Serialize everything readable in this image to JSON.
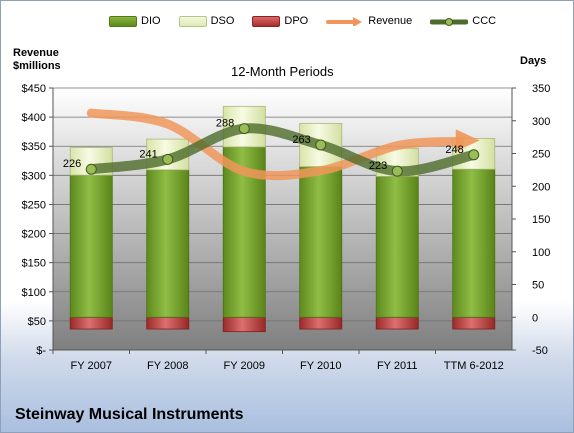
{
  "chart_data": {
    "type": "bar",
    "title": "12-Month Periods",
    "company": "Steinway Musical Instruments",
    "left_axis_title": [
      "Revenue",
      "$millions"
    ],
    "right_axis_title": "Days",
    "categories": [
      "FY 2007",
      "FY 2008",
      "FY 2009",
      "FY 2010",
      "FY 2011",
      "TTM 6-2012"
    ],
    "left_ticks": [
      "$-",
      "$50",
      "$100",
      "$150",
      "$200",
      "$250",
      "$300",
      "$350",
      "$400",
      "$450"
    ],
    "right_ticks": [
      "-50",
      "0",
      "50",
      "100",
      "150",
      "200",
      "250",
      "300",
      "350"
    ],
    "left_ylim": [
      0,
      450
    ],
    "right_ylim": [
      -50,
      350
    ],
    "grid": true,
    "legend_position": "top",
    "series": [
      {
        "name": "DIO",
        "axis": "right",
        "kind": "stacked-bar",
        "values": [
          217,
          225,
          260,
          230,
          215,
          226
        ],
        "color": "#6e9b2a"
      },
      {
        "name": "DSO",
        "axis": "right",
        "kind": "stacked-bar",
        "values": [
          42,
          47,
          62,
          66,
          43,
          47
        ],
        "color": "#e6efc2"
      },
      {
        "name": "DPO",
        "axis": "right",
        "kind": "stacked-bar",
        "values": [
          -18,
          -18,
          -22,
          -18,
          -18,
          -18
        ],
        "color": "#b83c3c"
      },
      {
        "name": "Revenue",
        "axis": "left",
        "kind": "line",
        "values": [
          407,
          388,
          307,
          308,
          351,
          360
        ],
        "color": "#f0965a"
      },
      {
        "name": "CCC",
        "axis": "right",
        "kind": "line-markers",
        "values": [
          226,
          241,
          288,
          263,
          223,
          248
        ],
        "color": "#4d6b2a"
      }
    ],
    "data_labels": [
      "226",
      "241",
      "288",
      "263",
      "223",
      "248"
    ]
  }
}
